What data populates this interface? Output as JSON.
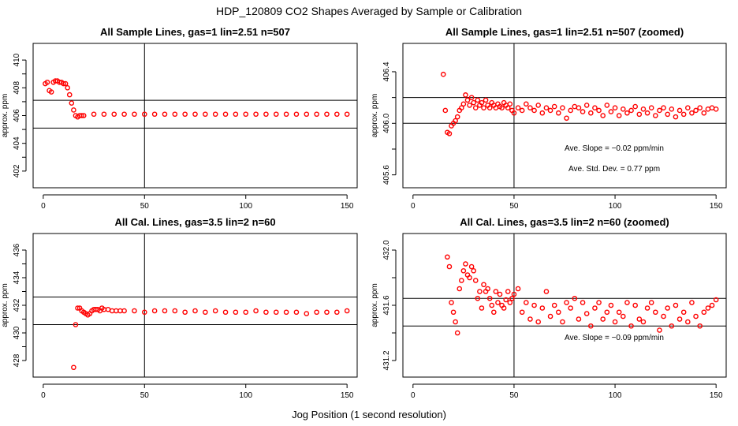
{
  "figure": {
    "title": "HDP_120809  CO2 Shapes Averaged by Sample or Calibration",
    "xlabel": "Jog Position (1 second resolution)",
    "point_color": "#ff0000"
  },
  "chart_data": [
    {
      "type": "scatter",
      "title": "All Sample Lines, gas=1 lin=2.51 n=507",
      "xlabel": "",
      "ylabel": "approx. ppm",
      "xlim": [
        -5,
        155
      ],
      "ylim": [
        400.8,
        411.2
      ],
      "xticks": [
        0,
        50,
        100,
        150
      ],
      "yticks": [
        402,
        404,
        406,
        408,
        410
      ],
      "vline": 50,
      "hlines": [
        405.1,
        407.1
      ],
      "annotations": [],
      "series": [
        {
          "x": [
            1,
            2,
            3,
            4,
            5,
            6,
            7,
            8,
            9,
            10,
            11,
            12,
            13,
            14,
            15,
            16,
            17,
            18,
            19,
            20,
            25,
            30,
            35,
            40,
            45,
            50,
            55,
            60,
            65,
            70,
            75,
            80,
            85,
            90,
            95,
            100,
            105,
            110,
            115,
            120,
            125,
            130,
            135,
            140,
            145,
            150
          ],
          "y": [
            408.3,
            408.4,
            407.8,
            407.7,
            408.4,
            408.5,
            408.5,
            408.4,
            408.4,
            408.3,
            408.3,
            408.0,
            407.5,
            406.9,
            406.4,
            406.0,
            405.9,
            406.0,
            406.0,
            406.0,
            406.1,
            406.1,
            406.1,
            406.1,
            406.1,
            406.1,
            406.1,
            406.1,
            406.1,
            406.1,
            406.1,
            406.1,
            406.1,
            406.1,
            406.1,
            406.1,
            406.1,
            406.1,
            406.1,
            406.1,
            406.1,
            406.1,
            406.1,
            406.1,
            406.1,
            406.1
          ]
        }
      ]
    },
    {
      "type": "scatter",
      "title": "All Sample Lines, gas=1 lin=2.51 n=507 (zoomed)",
      "xlabel": "",
      "ylabel": "approx. ppm",
      "xlim": [
        -5,
        155
      ],
      "ylim": [
        405.5,
        406.62
      ],
      "xticks": [
        0,
        50,
        100,
        150
      ],
      "yticks": [
        405.6,
        406.0,
        406.4
      ],
      "vline": 50,
      "hlines": [
        406.0,
        406.2
      ],
      "annotations": [
        "Ave. Slope =  −0.02  ppm/min",
        "Ave. Std. Dev. =  0.77  ppm"
      ],
      "series": [
        {
          "x": [
            15,
            16,
            17,
            18,
            19,
            20,
            21,
            22,
            23,
            24,
            25,
            26,
            27,
            28,
            29,
            30,
            31,
            32,
            33,
            34,
            35,
            36,
            37,
            38,
            39,
            40,
            41,
            42,
            43,
            44,
            45,
            46,
            47,
            48,
            49,
            50,
            52,
            54,
            56,
            58,
            60,
            62,
            64,
            66,
            68,
            70,
            72,
            74,
            76,
            78,
            80,
            82,
            84,
            86,
            88,
            90,
            92,
            94,
            96,
            98,
            100,
            102,
            104,
            106,
            108,
            110,
            112,
            114,
            116,
            118,
            120,
            122,
            124,
            126,
            128,
            130,
            132,
            134,
            136,
            138,
            140,
            142,
            144,
            146,
            148,
            150
          ],
          "y": [
            406.38,
            406.1,
            405.93,
            405.92,
            405.98,
            406.0,
            406.02,
            406.05,
            406.1,
            406.12,
            406.15,
            406.22,
            406.18,
            406.14,
            406.2,
            406.16,
            406.12,
            406.18,
            406.14,
            406.16,
            406.12,
            406.18,
            406.14,
            406.12,
            406.16,
            406.14,
            406.12,
            406.15,
            406.13,
            406.12,
            406.16,
            406.14,
            406.12,
            406.15,
            406.1,
            406.08,
            406.12,
            406.1,
            406.15,
            406.12,
            406.1,
            406.14,
            406.08,
            406.12,
            406.1,
            406.13,
            406.08,
            406.12,
            406.04,
            406.1,
            406.13,
            406.12,
            406.09,
            406.14,
            406.08,
            406.12,
            406.1,
            406.06,
            406.14,
            406.09,
            406.12,
            406.06,
            406.11,
            406.08,
            406.1,
            406.13,
            406.07,
            406.11,
            406.08,
            406.12,
            406.06,
            406.1,
            406.12,
            406.07,
            406.11,
            406.05,
            406.1,
            406.07,
            406.12,
            406.08,
            406.1,
            406.12,
            406.08,
            406.11,
            406.12,
            406.11
          ]
        }
      ]
    },
    {
      "type": "scatter",
      "title": "All Cal. Lines, gas=3.5 lin=2 n=60",
      "xlabel": "",
      "ylabel": "approx. ppm",
      "xlim": [
        -5,
        155
      ],
      "ylim": [
        426.8,
        437.2
      ],
      "xticks": [
        0,
        50,
        100,
        150
      ],
      "yticks": [
        428,
        430,
        432,
        434,
        436
      ],
      "vline": 50,
      "hlines": [
        430.6,
        432.6
      ],
      "annotations": [],
      "series": [
        {
          "x": [
            15,
            16,
            17,
            18,
            19,
            20,
            21,
            22,
            23,
            24,
            25,
            26,
            27,
            28,
            29,
            30,
            32,
            34,
            36,
            38,
            40,
            45,
            50,
            55,
            60,
            65,
            70,
            75,
            80,
            85,
            90,
            95,
            100,
            105,
            110,
            115,
            120,
            125,
            130,
            135,
            140,
            145,
            150
          ],
          "y": [
            427.5,
            430.6,
            431.8,
            431.8,
            431.6,
            431.5,
            431.4,
            431.3,
            431.4,
            431.6,
            431.7,
            431.7,
            431.7,
            431.6,
            431.8,
            431.7,
            431.7,
            431.6,
            431.6,
            431.6,
            431.6,
            431.6,
            431.5,
            431.6,
            431.6,
            431.6,
            431.5,
            431.6,
            431.5,
            431.6,
            431.5,
            431.5,
            431.5,
            431.6,
            431.5,
            431.5,
            431.5,
            431.5,
            431.4,
            431.5,
            431.5,
            431.5,
            431.6
          ]
        }
      ]
    },
    {
      "type": "scatter",
      "title": "All Cal. Lines, gas=3.5 lin=2 n=60 (zoomed)",
      "xlabel": "",
      "ylabel": "approx. ppm",
      "xlim": [
        -5,
        155
      ],
      "ylim": [
        431.08,
        432.12
      ],
      "xticks": [
        0,
        50,
        100,
        150
      ],
      "yticks": [
        431.2,
        431.6,
        432.0
      ],
      "vline": 50,
      "hlines": [
        431.45,
        431.65
      ],
      "annotations": [
        "Ave. Slope =  −0.09  ppm/min"
      ],
      "series": [
        {
          "x": [
            17,
            18,
            19,
            20,
            21,
            22,
            23,
            24,
            25,
            26,
            27,
            28,
            29,
            30,
            31,
            32,
            33,
            34,
            35,
            36,
            37,
            38,
            39,
            40,
            41,
            42,
            43,
            44,
            45,
            46,
            47,
            48,
            49,
            50,
            52,
            54,
            56,
            58,
            60,
            62,
            64,
            66,
            68,
            70,
            72,
            74,
            76,
            78,
            80,
            82,
            84,
            86,
            88,
            90,
            92,
            94,
            96,
            98,
            100,
            102,
            104,
            106,
            108,
            110,
            112,
            114,
            116,
            118,
            120,
            122,
            124,
            126,
            128,
            130,
            132,
            134,
            136,
            138,
            140,
            142,
            144,
            146,
            148,
            150
          ],
          "y": [
            431.95,
            431.88,
            431.62,
            431.55,
            431.48,
            431.4,
            431.72,
            431.78,
            431.85,
            431.9,
            431.82,
            431.8,
            431.88,
            431.85,
            431.78,
            431.65,
            431.7,
            431.58,
            431.75,
            431.7,
            431.72,
            431.65,
            431.6,
            431.55,
            431.7,
            431.62,
            431.68,
            431.6,
            431.58,
            431.64,
            431.7,
            431.62,
            431.65,
            431.68,
            431.72,
            431.55,
            431.62,
            431.5,
            431.6,
            431.48,
            431.58,
            431.7,
            431.52,
            431.6,
            431.55,
            431.48,
            431.62,
            431.58,
            431.65,
            431.5,
            431.62,
            431.54,
            431.45,
            431.58,
            431.62,
            431.5,
            431.55,
            431.6,
            431.48,
            431.55,
            431.52,
            431.62,
            431.45,
            431.6,
            431.5,
            431.48,
            431.58,
            431.62,
            431.55,
            431.42,
            431.52,
            431.58,
            431.45,
            431.6,
            431.5,
            431.55,
            431.48,
            431.62,
            431.52,
            431.45,
            431.55,
            431.58,
            431.6,
            431.64
          ]
        }
      ]
    }
  ]
}
